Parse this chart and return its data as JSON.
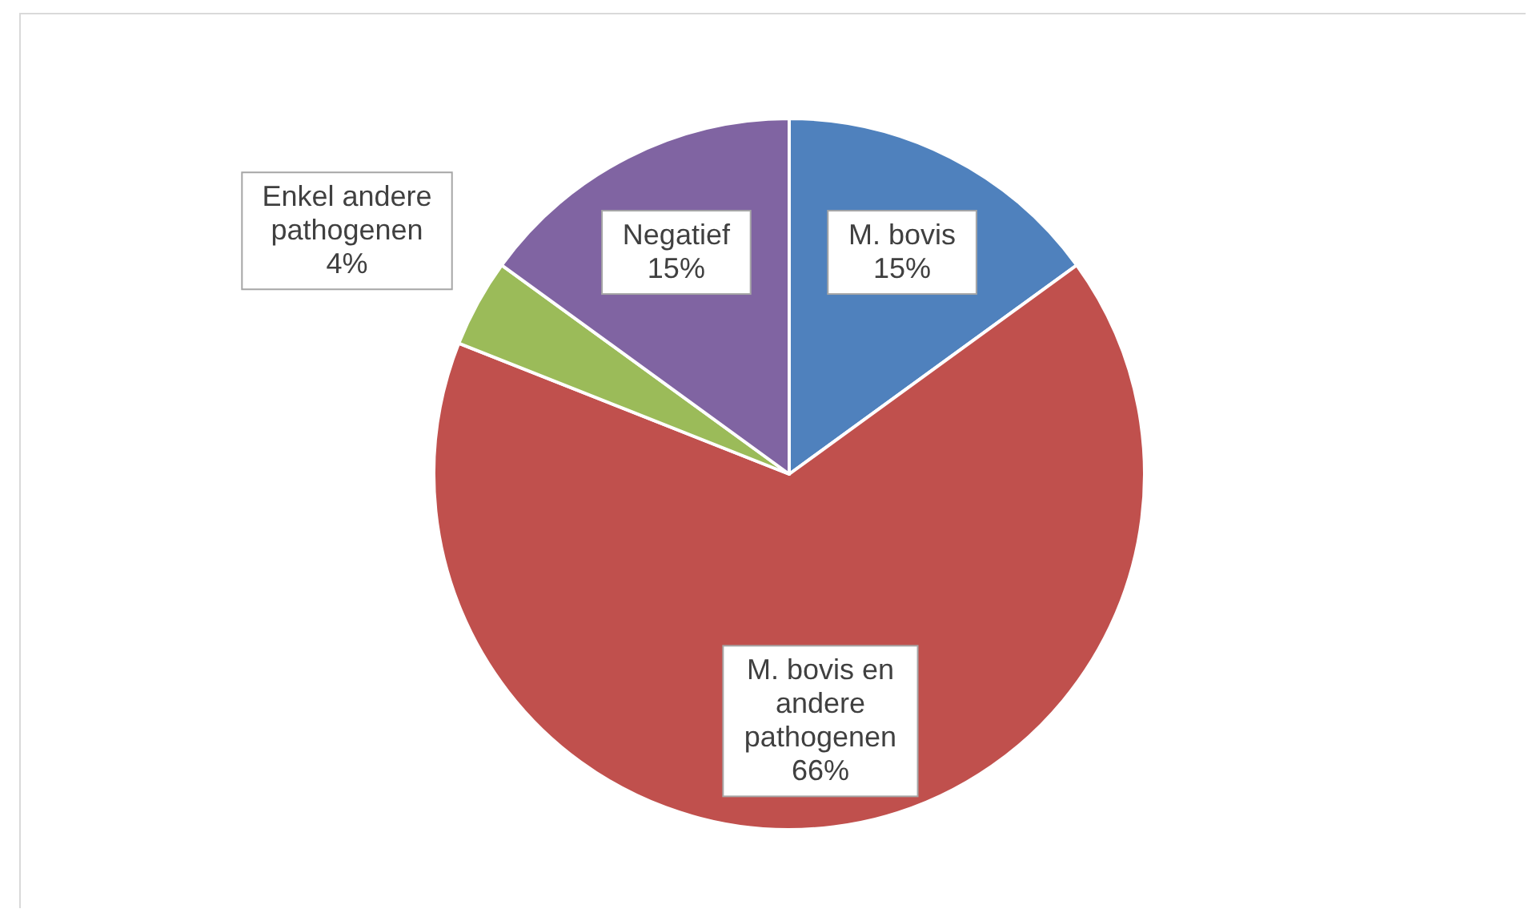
{
  "chart_data": {
    "type": "pie",
    "categories": [
      "M. bovis",
      "M. bovis en andere pathogenen",
      "Enkel andere pathogenen",
      "Negatief"
    ],
    "values": [
      15,
      66,
      4,
      15
    ],
    "value_labels": [
      "15%",
      "66%",
      "4%",
      "15%"
    ],
    "colors": [
      "#4f81bd",
      "#c0504d",
      "#9bbb59",
      "#8064a2"
    ]
  }
}
